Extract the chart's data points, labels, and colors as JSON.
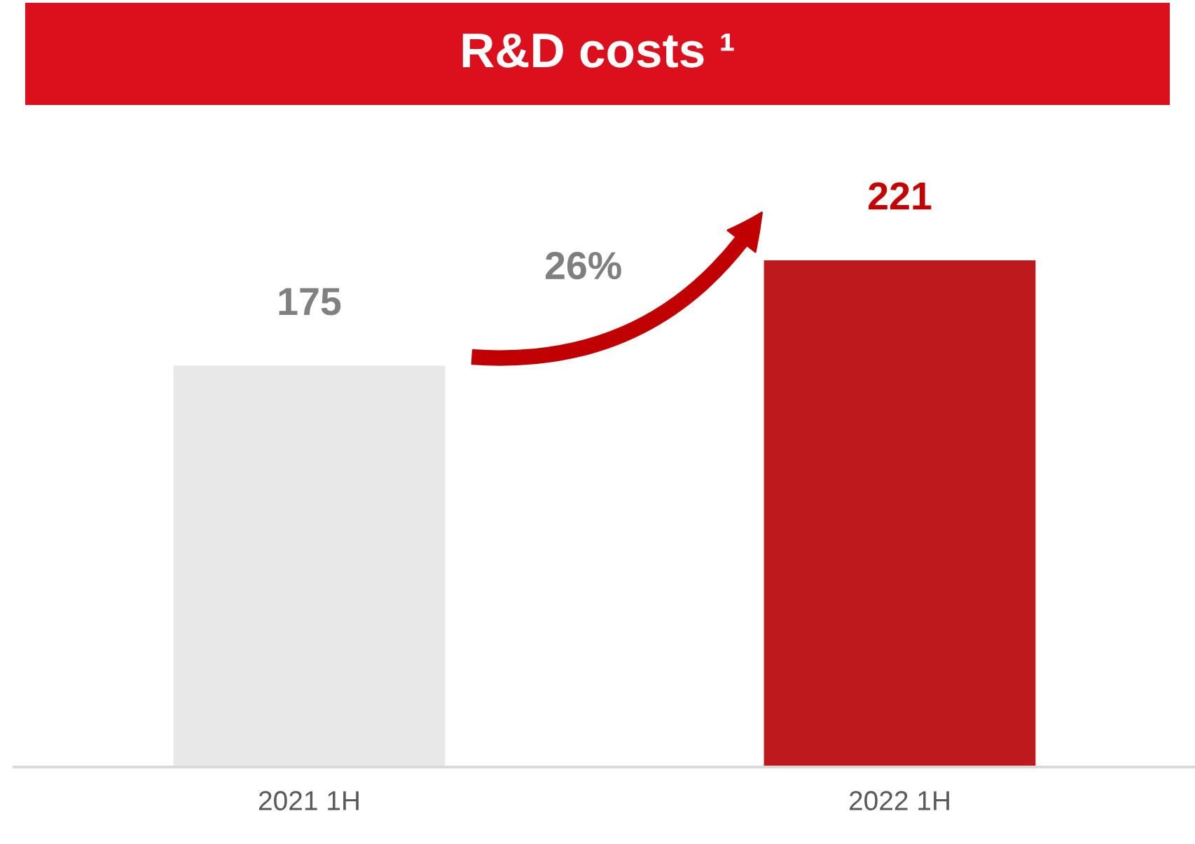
{
  "chart_data": {
    "type": "bar",
    "title": "R&D costs ¹",
    "categories": [
      "2021 1H",
      "2022 1H"
    ],
    "values": [
      175,
      221
    ],
    "colors": [
      "#e8e8e8",
      "#be1a1d"
    ],
    "data_labels": true,
    "tick_labels": "x",
    "grid": false,
    "legend": false,
    "annotations": [
      "26%"
    ]
  }
}
